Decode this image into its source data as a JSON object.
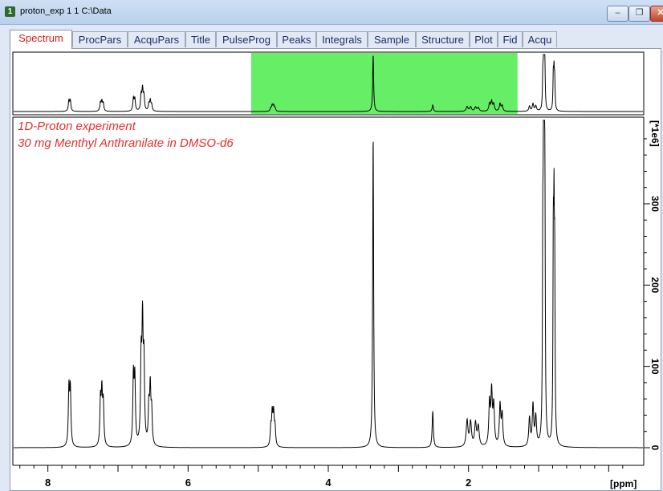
{
  "window": {
    "badge": "1",
    "title": "proton_exp  1  1  C:\\Data",
    "min_glyph": "–",
    "max_glyph": "❐",
    "close_glyph": "✕"
  },
  "tabs": [
    {
      "label": "Spectrum",
      "active": true
    },
    {
      "label": "ProcPars",
      "active": false
    },
    {
      "label": "AcquPars",
      "active": false
    },
    {
      "label": "Title",
      "active": false
    },
    {
      "label": "PulseProg",
      "active": false
    },
    {
      "label": "Peaks",
      "active": false
    },
    {
      "label": "Integrals",
      "active": false
    },
    {
      "label": "Sample",
      "active": false
    },
    {
      "label": "Structure",
      "active": false
    },
    {
      "label": "Plot",
      "active": false
    },
    {
      "label": "Fid",
      "active": false
    },
    {
      "label": "Acqu",
      "active": false
    }
  ],
  "spectrum": {
    "line1": "1D-Proton experiment",
    "line2": "30 mg Menthyl Anthranilate in DMSO-d6",
    "x_unit": "[ppm]",
    "y_unit": "[*1e6]",
    "colors": {
      "overview_window": "#66ee66",
      "annotation": "#e4302b",
      "trace": "#000000"
    }
  },
  "chart_data": {
    "type": "line",
    "title": "",
    "xlabel": "[ppm]",
    "ylabel": "[*1e6]",
    "xlim": [
      8.5,
      -0.5
    ],
    "ylim": [
      -20,
      400
    ],
    "x_ticks": [
      8,
      6,
      4,
      2
    ],
    "y_ticks": [
      0,
      100,
      200,
      300
    ],
    "overview_window_ppm": [
      5.1,
      1.3
    ],
    "peaks": [
      {
        "ppm": 7.7,
        "height": 70,
        "width": 0.01
      },
      {
        "ppm": 7.68,
        "height": 68,
        "width": 0.01
      },
      {
        "ppm": 7.25,
        "height": 55,
        "width": 0.01
      },
      {
        "ppm": 7.23,
        "height": 62,
        "width": 0.01
      },
      {
        "ppm": 7.21,
        "height": 50,
        "width": 0.01
      },
      {
        "ppm": 6.78,
        "height": 83,
        "width": 0.01
      },
      {
        "ppm": 6.76,
        "height": 80,
        "width": 0.01
      },
      {
        "ppm": 6.67,
        "height": 100,
        "width": 0.01
      },
      {
        "ppm": 6.65,
        "height": 140,
        "width": 0.01
      },
      {
        "ppm": 6.63,
        "height": 95,
        "width": 0.01
      },
      {
        "ppm": 6.56,
        "height": 45,
        "width": 0.01
      },
      {
        "ppm": 6.54,
        "height": 68,
        "width": 0.01
      },
      {
        "ppm": 6.52,
        "height": 40,
        "width": 0.01
      },
      {
        "ppm": 4.82,
        "height": 22,
        "width": 0.01
      },
      {
        "ppm": 4.8,
        "height": 38,
        "width": 0.01
      },
      {
        "ppm": 4.78,
        "height": 38,
        "width": 0.01
      },
      {
        "ppm": 4.76,
        "height": 22,
        "width": 0.01
      },
      {
        "ppm": 3.36,
        "height": 385,
        "width": 0.008
      },
      {
        "ppm": 2.51,
        "height": 45,
        "width": 0.01
      },
      {
        "ppm": 2.02,
        "height": 32,
        "width": 0.015
      },
      {
        "ppm": 1.97,
        "height": 30,
        "width": 0.015
      },
      {
        "ppm": 1.9,
        "height": 28,
        "width": 0.015
      },
      {
        "ppm": 1.86,
        "height": 24,
        "width": 0.015
      },
      {
        "ppm": 1.7,
        "height": 52,
        "width": 0.012
      },
      {
        "ppm": 1.67,
        "height": 64,
        "width": 0.012
      },
      {
        "ppm": 1.64,
        "height": 48,
        "width": 0.012
      },
      {
        "ppm": 1.55,
        "height": 50,
        "width": 0.012
      },
      {
        "ppm": 1.52,
        "height": 38,
        "width": 0.012
      },
      {
        "ppm": 1.13,
        "height": 35,
        "width": 0.012
      },
      {
        "ppm": 1.08,
        "height": 50,
        "width": 0.012
      },
      {
        "ppm": 1.04,
        "height": 35,
        "width": 0.012
      },
      {
        "ppm": 0.94,
        "height": 210,
        "width": 0.006
      },
      {
        "ppm": 0.93,
        "height": 260,
        "width": 0.006
      },
      {
        "ppm": 0.92,
        "height": 385,
        "width": 0.006
      },
      {
        "ppm": 0.91,
        "height": 240,
        "width": 0.006
      },
      {
        "ppm": 0.79,
        "height": 225,
        "width": 0.006
      },
      {
        "ppm": 0.78,
        "height": 232,
        "width": 0.006
      },
      {
        "ppm": 0.77,
        "height": 195,
        "width": 0.006
      }
    ]
  }
}
